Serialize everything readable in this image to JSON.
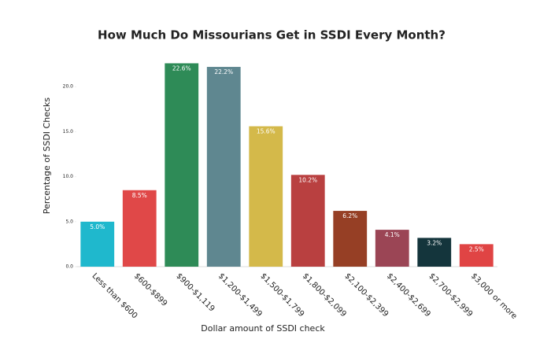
{
  "chart_data": {
    "type": "bar",
    "title": "How Much Do Missourians Get in SSDI Every Month?",
    "x_label": "Dollar amount of SSDI check",
    "y_label": "Percentage of SSDI Checks",
    "categories": [
      "Less than $600",
      "$600-$899",
      "$900-$1,119",
      "$1,200-$1,499",
      "$1,500-$1,799",
      "$1,800-$2,099",
      "$2,100-$2,399",
      "$2,400-$2,699",
      "$2,700-$2,999",
      "$3,000 or more"
    ],
    "values": [
      5.0,
      8.5,
      22.6,
      22.2,
      15.6,
      10.2,
      6.2,
      4.1,
      3.2,
      2.5
    ],
    "value_labels": [
      "5.0%",
      "8.5%",
      "22.6%",
      "22.2%",
      "15.6%",
      "10.2%",
      "6.2%",
      "4.1%",
      "3.2%",
      "2.5%"
    ],
    "colors": [
      "#1fb8cd",
      "#e04848",
      "#2e8b57",
      "#5f8790",
      "#d4b94a",
      "#b94040",
      "#963f25",
      "#9b4555",
      "#14353c",
      "#e04444"
    ],
    "ylim": [
      0,
      25
    ],
    "yticks": [
      {
        "value": 0,
        "label": "0.0"
      },
      {
        "value": 5,
        "label": "5.0"
      },
      {
        "value": 10,
        "label": "10.0"
      },
      {
        "value": 15,
        "label": "15.0"
      },
      {
        "value": 20,
        "label": "20.0"
      }
    ],
    "grid": false
  }
}
